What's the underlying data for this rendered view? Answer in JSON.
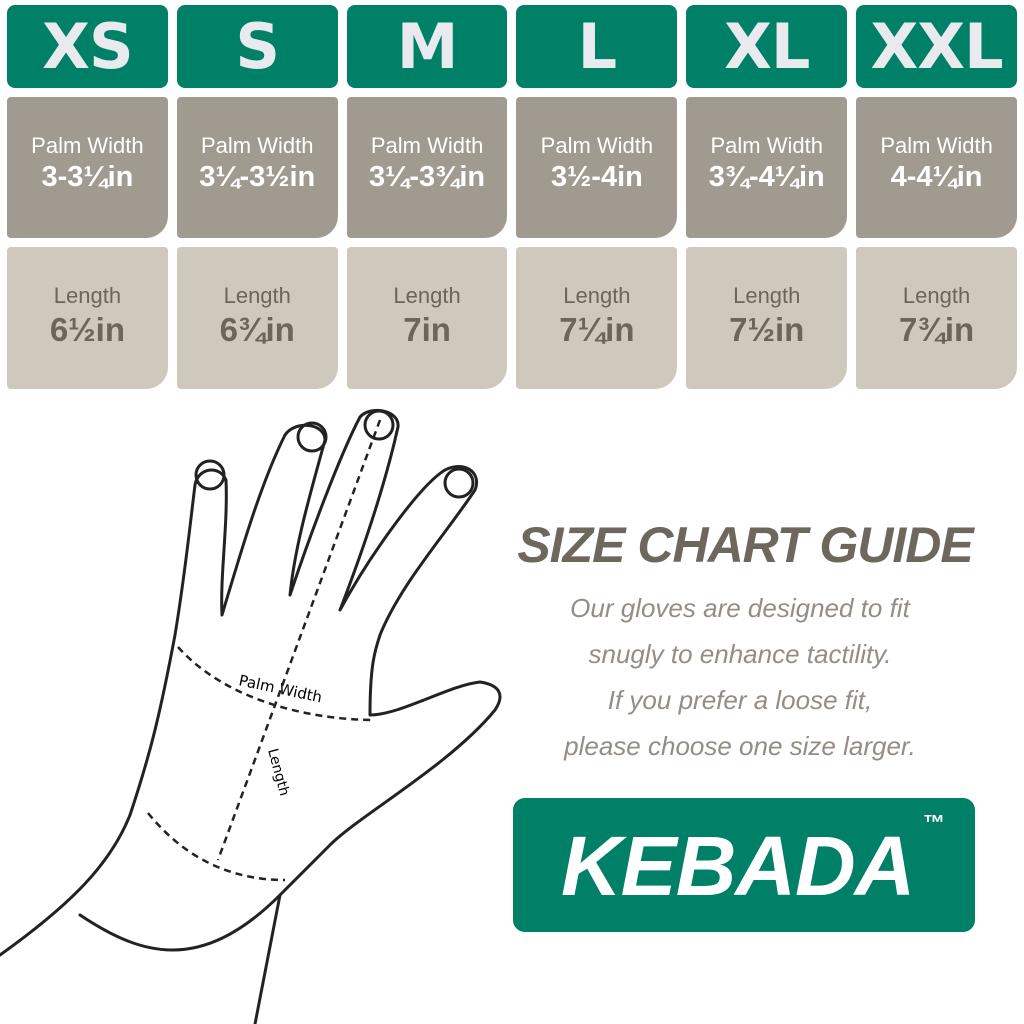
{
  "sizes": [
    {
      "size": "XS",
      "palm_label": "Palm Width",
      "palm": "3-3¼in",
      "length_label": "Length",
      "length": "6½in"
    },
    {
      "size": "S",
      "palm_label": "Palm Width",
      "palm": "3¼-3½in",
      "length_label": "Length",
      "length": "6¾in"
    },
    {
      "size": "M",
      "palm_label": "Palm Width",
      "palm": "3¼-3¾in",
      "length_label": "Length",
      "length": "7in"
    },
    {
      "size": "L",
      "palm_label": "Palm Width",
      "palm": "3½-4in",
      "length_label": "Length",
      "length": "7¼in"
    },
    {
      "size": "XL",
      "palm_label": "Palm Width",
      "palm": "3¾-4¼in",
      "length_label": "Length",
      "length": "7½in"
    },
    {
      "size": "XXL",
      "palm_label": "Palm Width",
      "palm": "4-4¼in",
      "length_label": "Length",
      "length": "7¾in"
    }
  ],
  "diagram": {
    "palm_width_label": "Palm Width",
    "length_label": "Length"
  },
  "guide": {
    "title": "SIZE CHART GUIDE",
    "lines": [
      "Our gloves are designed to fit",
      "snugly to enhance tactility.",
      "If you prefer a loose fit,",
      "please choose one size larger."
    ]
  },
  "brand": {
    "name": "KEBADA",
    "tm": "™"
  },
  "colors": {
    "green": "#008066",
    "palm_bg": "#a09a90",
    "length_bg": "#cfc8bc",
    "title": "#6e675e",
    "text": "#948d85"
  }
}
